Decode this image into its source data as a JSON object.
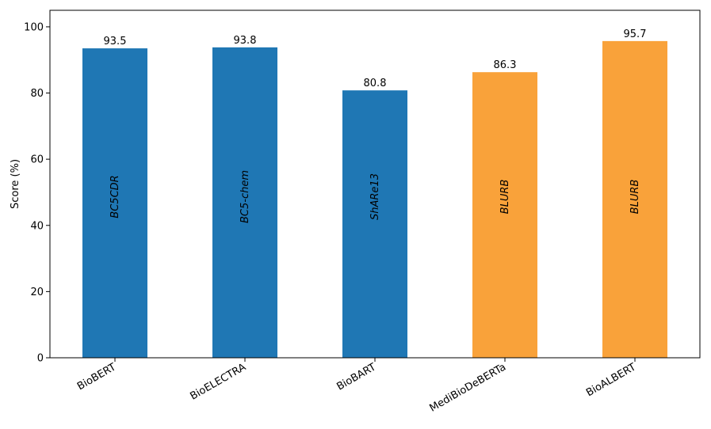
{
  "chart_data": {
    "type": "bar",
    "categories": [
      "BioBERT",
      "BioELECTRA",
      "BioBART",
      "MediBioDeBERTa",
      "BioALBERT"
    ],
    "values": [
      93.5,
      93.8,
      80.8,
      86.3,
      95.7
    ],
    "value_labels": [
      "93.5",
      "93.8",
      "80.8",
      "86.3",
      "95.7"
    ],
    "bar_annotations": [
      "BC5CDR",
      "BC5-chem",
      "ShARe13",
      "BLURB",
      "BLURB"
    ],
    "bar_colors": [
      "#1f77b4",
      "#1f77b4",
      "#1f77b4",
      "#f9a23a",
      "#f9a23a"
    ],
    "title": "",
    "xlabel": "",
    "ylabel": "Score (%)",
    "ylim": [
      0,
      105
    ],
    "yticks": [
      0,
      20,
      40,
      60,
      80,
      100
    ],
    "grid": false
  }
}
